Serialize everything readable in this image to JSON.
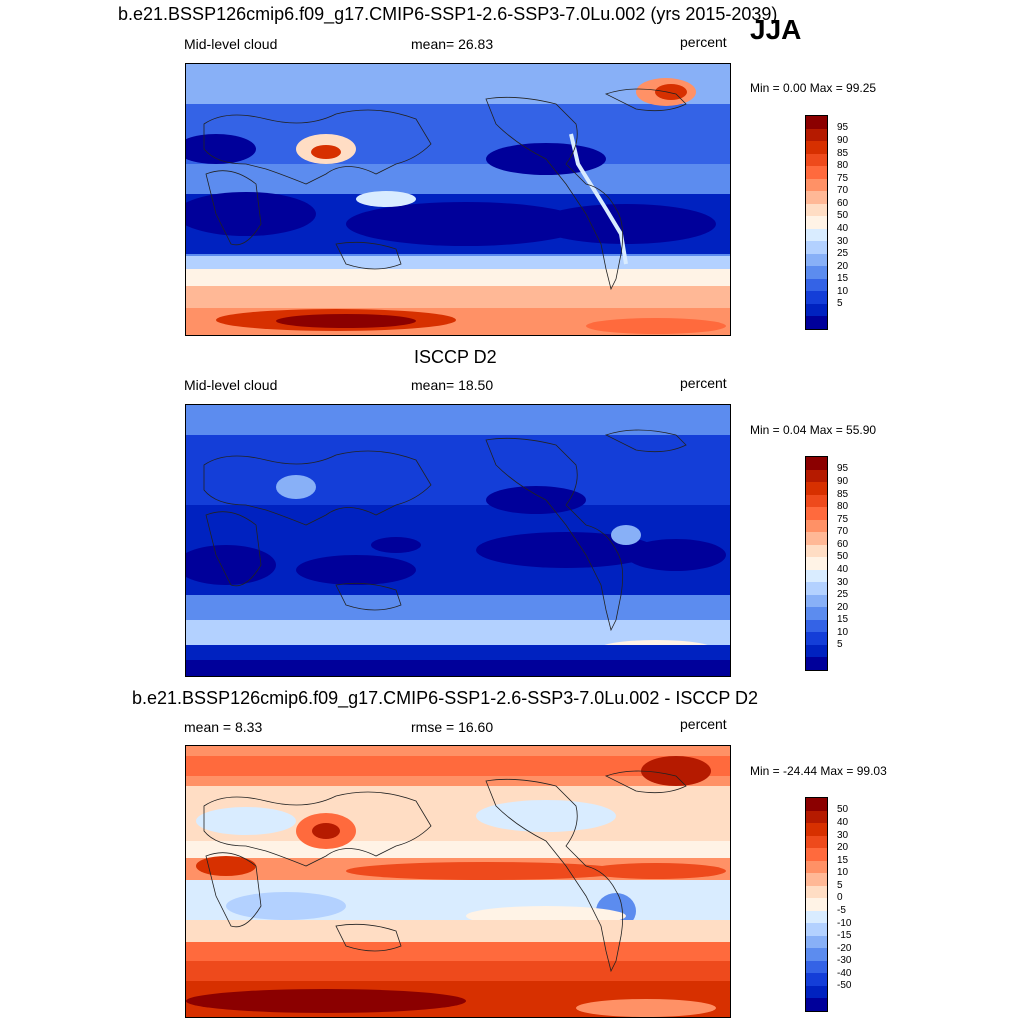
{
  "season": "JJA",
  "panels": [
    {
      "title": "b.e21.BSSP126cmip6.f09_g17.CMIP6-SSP1-2.6-SSP3-7.0Lu.002 (yrs 2015-2039)",
      "left_label": "Mid-level cloud",
      "center_label": "mean=  26.83",
      "right_label": "percent",
      "minmax": "Min =   0.00 Max =  99.25",
      "colorbar_ticks": [
        "95",
        "90",
        "85",
        "80",
        "75",
        "70",
        "60",
        "50",
        "40",
        "30",
        "25",
        "20",
        "15",
        "10",
        "5"
      ],
      "colorbar_colors": [
        "#8b0000",
        "#b51a00",
        "#d73000",
        "#ee4a1c",
        "#ff6a3d",
        "#ff9166",
        "#ffb896",
        "#ffddc4",
        "#fff3e6",
        "#d9ecff",
        "#b3d1ff",
        "#88b0f7",
        "#5c8cef",
        "#3463e6",
        "#143ed8",
        "#0022c0",
        "#00009a"
      ]
    },
    {
      "title": "ISCCP D2",
      "left_label": "Mid-level cloud",
      "center_label": "mean=  18.50",
      "right_label": "percent",
      "minmax": "Min =   0.04 Max =  55.90",
      "colorbar_ticks": [
        "95",
        "90",
        "85",
        "80",
        "75",
        "70",
        "60",
        "50",
        "40",
        "30",
        "25",
        "20",
        "15",
        "10",
        "5"
      ],
      "colorbar_colors": [
        "#8b0000",
        "#b51a00",
        "#d73000",
        "#ee4a1c",
        "#ff6a3d",
        "#ff9166",
        "#ffb896",
        "#ffddc4",
        "#fff3e6",
        "#d9ecff",
        "#b3d1ff",
        "#88b0f7",
        "#5c8cef",
        "#3463e6",
        "#143ed8",
        "#0022c0",
        "#00009a"
      ]
    },
    {
      "title": "b.e21.BSSP126cmip6.f09_g17.CMIP6-SSP1-2.6-SSP3-7.0Lu.002 - ISCCP D2",
      "left_label": "mean =   8.33",
      "center_label": "rmse =  16.60",
      "right_label": "percent",
      "minmax": "Min = -24.44 Max =  99.03",
      "colorbar_ticks": [
        "50",
        "40",
        "30",
        "20",
        "15",
        "10",
        "5",
        "0",
        "-5",
        "-10",
        "-15",
        "-20",
        "-30",
        "-40",
        "-50"
      ],
      "colorbar_colors": [
        "#8b0000",
        "#b51a00",
        "#d73000",
        "#ee4a1c",
        "#ff6a3d",
        "#ff9166",
        "#ffb896",
        "#ffddc4",
        "#fff3e6",
        "#d9ecff",
        "#b3d1ff",
        "#88b0f7",
        "#5c8cef",
        "#3463e6",
        "#143ed8",
        "#0022c0",
        "#00009a"
      ]
    }
  ]
}
